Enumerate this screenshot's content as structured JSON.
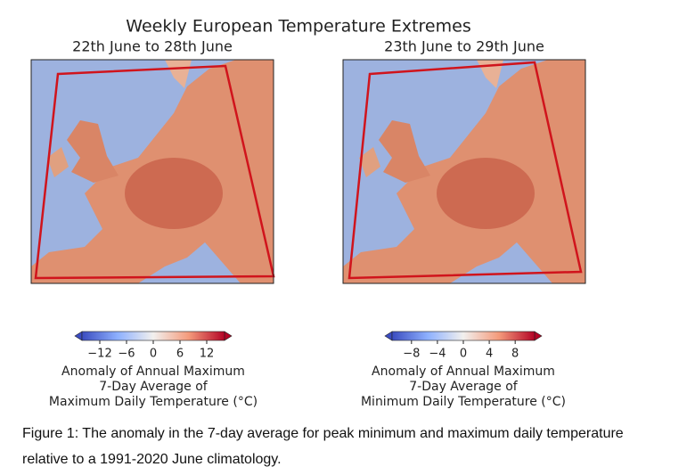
{
  "title": "Weekly European Temperature Extremes",
  "panels": [
    {
      "subtitle": "22th June to 28th June",
      "colorbar": {
        "lim": [
          -16,
          16
        ],
        "ticks": [
          {
            "value": -12,
            "label": "−12"
          },
          {
            "value": -6,
            "label": "−6"
          },
          0,
          6,
          12
        ],
        "label_lines": [
          "Anomaly of Annual Maximum",
          "7-Day Average of",
          "Maximum Daily Temperature (°C)"
        ]
      }
    },
    {
      "subtitle": "23th June to 29th June",
      "colorbar": {
        "lim": [
          -11,
          11
        ],
        "ticks": [
          {
            "value": -8,
            "label": "−8"
          },
          {
            "value": -4,
            "label": "−4"
          },
          0,
          4,
          8
        ],
        "label_lines": [
          "Anomaly of Annual Maximum",
          "7-Day Average of",
          "Minimum Daily Temperature (°C)"
        ]
      }
    }
  ],
  "caption": "Figure 1: The anomaly in the 7-day average for peak minimum and maximum daily temperature relative to a 1991-2020 June climatology."
}
